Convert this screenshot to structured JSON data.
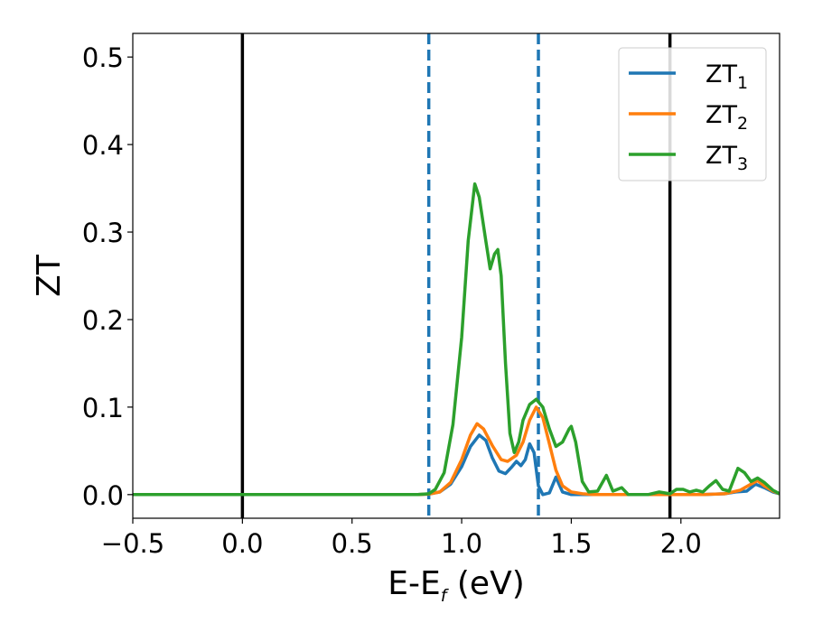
{
  "chart_data": {
    "type": "line",
    "xlabel": {
      "main": "E-E",
      "sub": "f",
      "unit": " (eV)"
    },
    "ylabel": "ZT",
    "xlim": [
      -0.5,
      2.45
    ],
    "ylim": [
      -0.027,
      0.527
    ],
    "xticks": [
      {
        "value": -0.5,
        "label": "−0.5"
      },
      {
        "value": 0.0,
        "label": "0.0"
      },
      {
        "value": 0.5,
        "label": "0.5"
      },
      {
        "value": 1.0,
        "label": "1.0"
      },
      {
        "value": 1.5,
        "label": "1.5"
      },
      {
        "value": 2.0,
        "label": "2.0"
      }
    ],
    "yticks": [
      {
        "value": 0.0,
        "label": "0.0"
      },
      {
        "value": 0.1,
        "label": "0.1"
      },
      {
        "value": 0.2,
        "label": "0.2"
      },
      {
        "value": 0.3,
        "label": "0.3"
      },
      {
        "value": 0.4,
        "label": "0.4"
      },
      {
        "value": 0.5,
        "label": "0.5"
      }
    ],
    "grid": false,
    "legend_position": "top-right",
    "vlines": [
      {
        "x": 0.0,
        "style": "solid",
        "color": "#000000"
      },
      {
        "x": 1.95,
        "style": "solid",
        "color": "#000000"
      },
      {
        "x": 0.85,
        "style": "dashed",
        "color": "#1f77b4"
      },
      {
        "x": 1.35,
        "style": "dashed",
        "color": "#1f77b4"
      }
    ],
    "series": [
      {
        "name": "ZT",
        "sub": "1",
        "color": "#1f77b4",
        "points": [
          [
            -0.5,
            0
          ],
          [
            0.8,
            0
          ],
          [
            0.85,
            0.0005
          ],
          [
            0.9,
            0.003
          ],
          [
            0.95,
            0.012
          ],
          [
            1.0,
            0.032
          ],
          [
            1.04,
            0.055
          ],
          [
            1.08,
            0.068
          ],
          [
            1.11,
            0.062
          ],
          [
            1.14,
            0.042
          ],
          [
            1.17,
            0.027
          ],
          [
            1.2,
            0.024
          ],
          [
            1.23,
            0.032
          ],
          [
            1.25,
            0.038
          ],
          [
            1.27,
            0.033
          ],
          [
            1.29,
            0.04
          ],
          [
            1.31,
            0.058
          ],
          [
            1.33,
            0.048
          ],
          [
            1.35,
            0.01
          ],
          [
            1.37,
            0.0
          ],
          [
            1.4,
            0.002
          ],
          [
            1.43,
            0.02
          ],
          [
            1.46,
            0.003
          ],
          [
            1.5,
            0.0
          ],
          [
            1.6,
            0.0
          ],
          [
            1.7,
            0.0
          ],
          [
            1.8,
            0.0
          ],
          [
            1.9,
            0.0
          ],
          [
            2.0,
            0.0
          ],
          [
            2.1,
            0.0
          ],
          [
            2.2,
            0.001
          ],
          [
            2.25,
            0.003
          ],
          [
            2.3,
            0.004
          ],
          [
            2.34,
            0.012
          ],
          [
            2.38,
            0.008
          ],
          [
            2.42,
            0.003
          ],
          [
            2.45,
            0.001
          ]
        ]
      },
      {
        "name": "ZT",
        "sub": "2",
        "color": "#ff7f0e",
        "points": [
          [
            -0.5,
            0
          ],
          [
            0.8,
            0
          ],
          [
            0.85,
            0.0005
          ],
          [
            0.9,
            0.003
          ],
          [
            0.95,
            0.014
          ],
          [
            1.0,
            0.04
          ],
          [
            1.04,
            0.068
          ],
          [
            1.07,
            0.081
          ],
          [
            1.1,
            0.075
          ],
          [
            1.14,
            0.056
          ],
          [
            1.18,
            0.04
          ],
          [
            1.21,
            0.038
          ],
          [
            1.25,
            0.045
          ],
          [
            1.28,
            0.06
          ],
          [
            1.31,
            0.085
          ],
          [
            1.34,
            0.1
          ],
          [
            1.37,
            0.088
          ],
          [
            1.4,
            0.058
          ],
          [
            1.43,
            0.028
          ],
          [
            1.46,
            0.01
          ],
          [
            1.5,
            0.003
          ],
          [
            1.55,
            0.001
          ],
          [
            1.6,
            0.0
          ],
          [
            1.7,
            0.0
          ],
          [
            1.8,
            0.0
          ],
          [
            1.9,
            0.0
          ],
          [
            2.0,
            0.0
          ],
          [
            2.1,
            0.0
          ],
          [
            2.2,
            0.001
          ],
          [
            2.27,
            0.005
          ],
          [
            2.32,
            0.012
          ],
          [
            2.35,
            0.016
          ],
          [
            2.38,
            0.01
          ],
          [
            2.42,
            0.004
          ],
          [
            2.45,
            0.001
          ]
        ]
      },
      {
        "name": "ZT",
        "sub": "3",
        "color": "#2ca02c",
        "points": [
          [
            -0.5,
            0
          ],
          [
            0.8,
            0
          ],
          [
            0.85,
            0.001
          ],
          [
            0.88,
            0.006
          ],
          [
            0.92,
            0.025
          ],
          [
            0.96,
            0.08
          ],
          [
            1.0,
            0.18
          ],
          [
            1.03,
            0.29
          ],
          [
            1.06,
            0.355
          ],
          [
            1.08,
            0.34
          ],
          [
            1.11,
            0.29
          ],
          [
            1.13,
            0.258
          ],
          [
            1.15,
            0.275
          ],
          [
            1.165,
            0.28
          ],
          [
            1.18,
            0.25
          ],
          [
            1.2,
            0.15
          ],
          [
            1.22,
            0.07
          ],
          [
            1.24,
            0.048
          ],
          [
            1.26,
            0.06
          ],
          [
            1.28,
            0.085
          ],
          [
            1.31,
            0.103
          ],
          [
            1.34,
            0.109
          ],
          [
            1.37,
            0.1
          ],
          [
            1.4,
            0.075
          ],
          [
            1.43,
            0.055
          ],
          [
            1.46,
            0.06
          ],
          [
            1.49,
            0.075
          ],
          [
            1.5,
            0.078
          ],
          [
            1.52,
            0.06
          ],
          [
            1.55,
            0.015
          ],
          [
            1.58,
            0.003
          ],
          [
            1.62,
            0.004
          ],
          [
            1.66,
            0.022
          ],
          [
            1.69,
            0.004
          ],
          [
            1.73,
            0.008
          ],
          [
            1.76,
            0.0
          ],
          [
            1.8,
            0.0
          ],
          [
            1.85,
            0.0
          ],
          [
            1.9,
            0.003
          ],
          [
            1.95,
            0.001
          ],
          [
            1.98,
            0.006
          ],
          [
            2.01,
            0.006
          ],
          [
            2.04,
            0.003
          ],
          [
            2.07,
            0.005
          ],
          [
            2.1,
            0.003
          ],
          [
            2.13,
            0.01
          ],
          [
            2.16,
            0.016
          ],
          [
            2.19,
            0.006
          ],
          [
            2.22,
            0.004
          ],
          [
            2.26,
            0.03
          ],
          [
            2.29,
            0.025
          ],
          [
            2.32,
            0.015
          ],
          [
            2.35,
            0.019
          ],
          [
            2.38,
            0.014
          ],
          [
            2.42,
            0.005
          ],
          [
            2.45,
            0.001
          ]
        ]
      }
    ]
  }
}
